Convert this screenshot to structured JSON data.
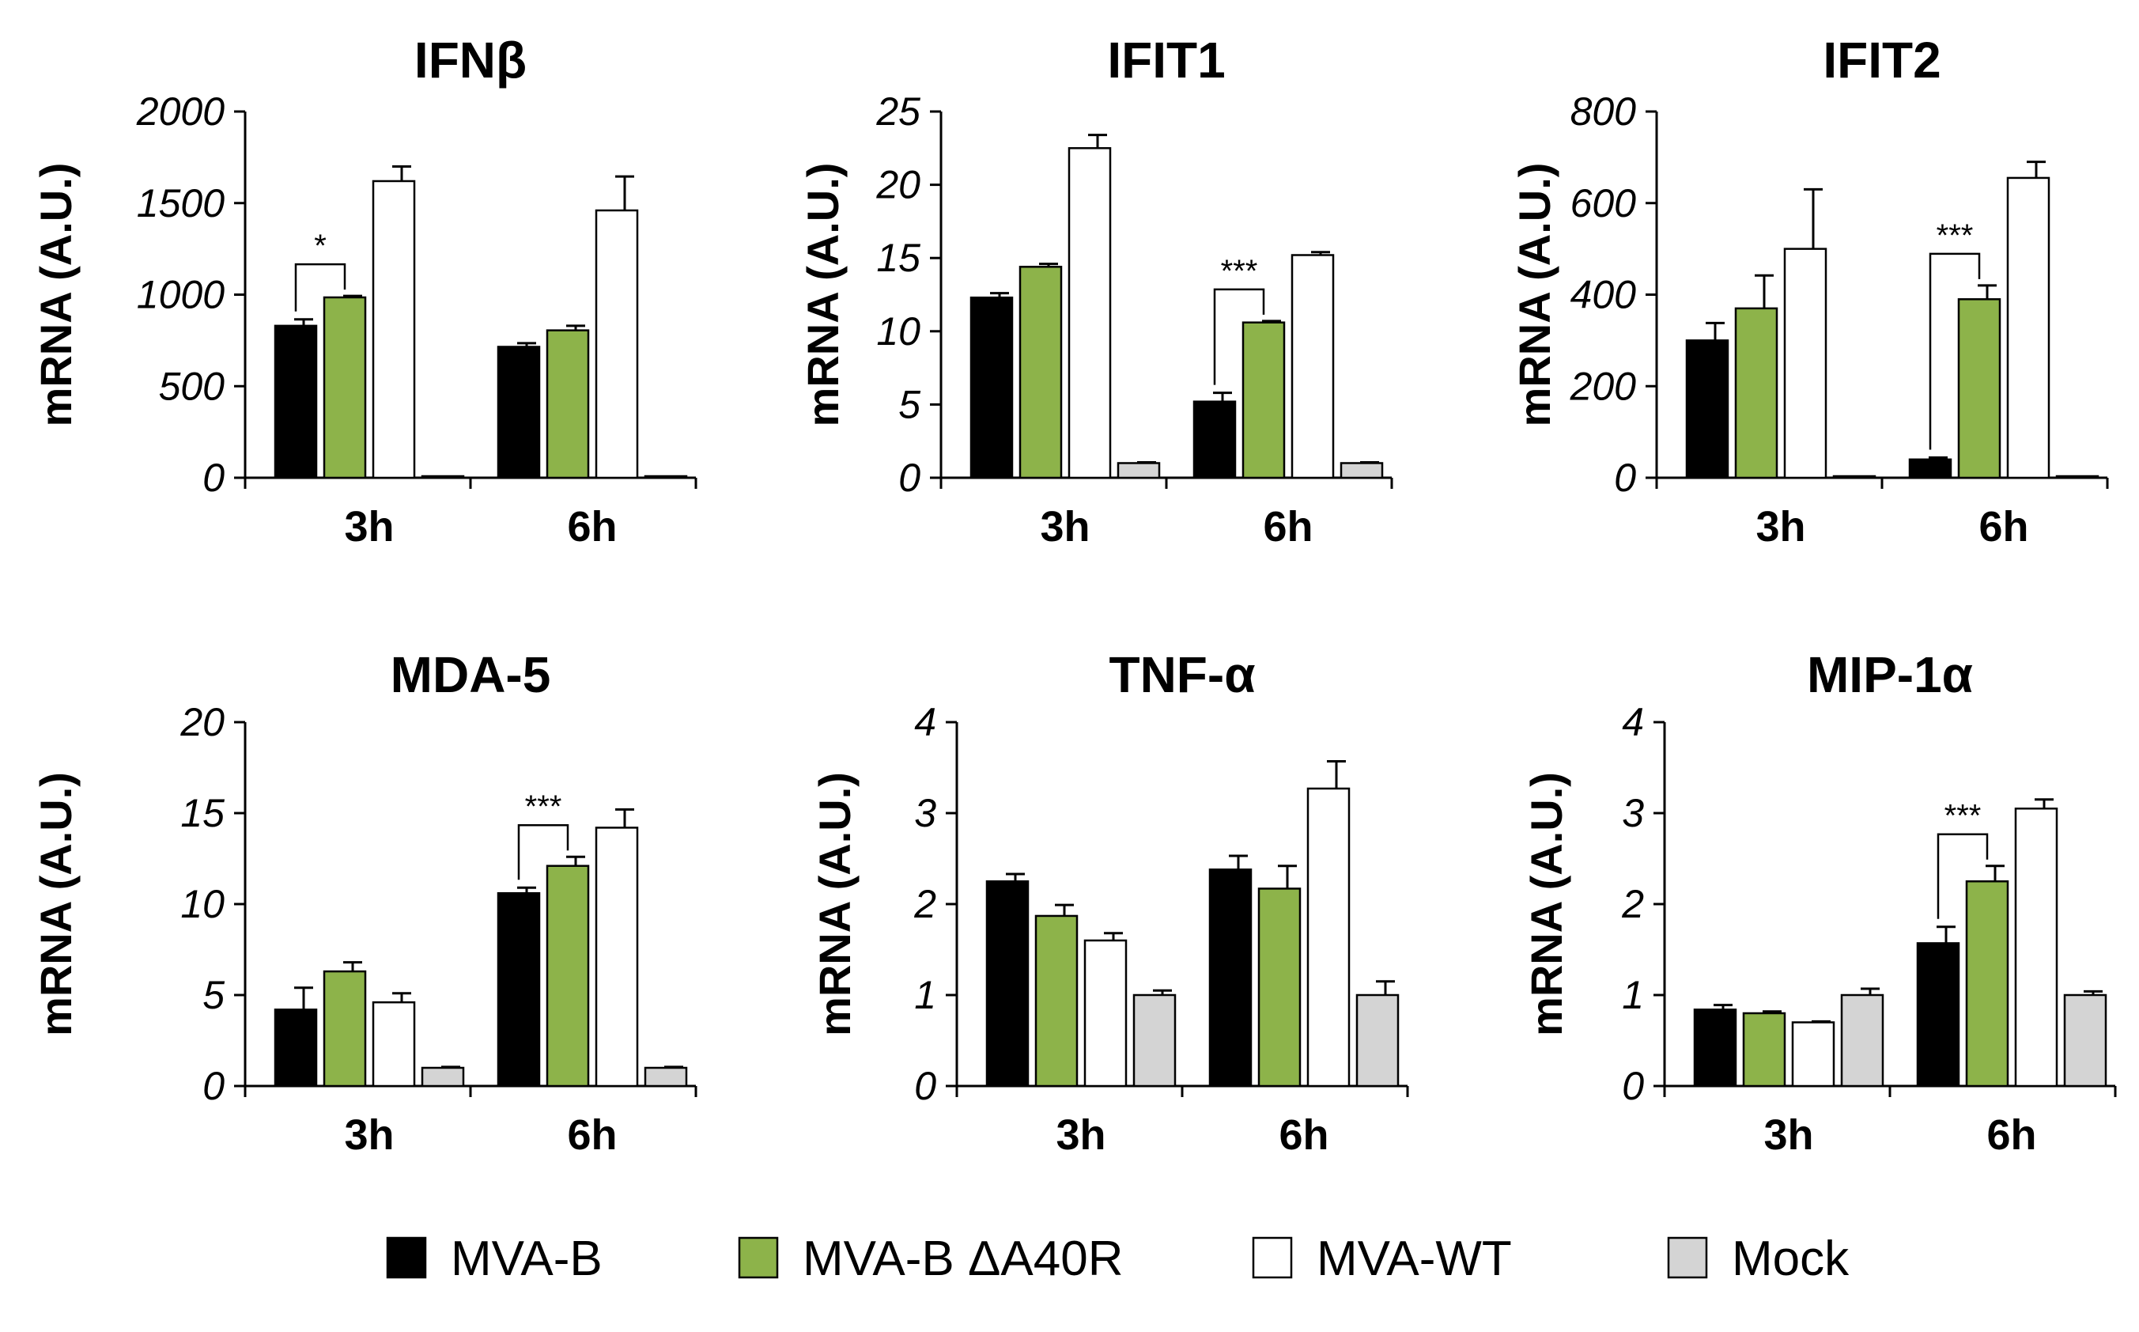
{
  "chart_data": [
    {
      "type": "bar",
      "title": "IFNβ",
      "ylabel": "mRNA (A.U.)",
      "xlabel": "",
      "categories": [
        "3h",
        "6h"
      ],
      "ylim": [
        0,
        2000
      ],
      "yticks": [
        0,
        500,
        1000,
        1500,
        2000
      ],
      "series": [
        {
          "name": "MVA-B",
          "values": [
            830,
            715
          ],
          "errors": [
            35,
            20
          ]
        },
        {
          "name": "MVA-B ΔA40R",
          "values": [
            985,
            805
          ],
          "errors": [
            8,
            25
          ]
        },
        {
          "name": "MVA-WT",
          "values": [
            1620,
            1460
          ],
          "errors": [
            80,
            185
          ]
        },
        {
          "name": "Mock",
          "values": [
            5,
            5
          ],
          "errors": [
            0,
            0
          ]
        }
      ],
      "significance": [
        {
          "category": "3h",
          "label": "*"
        }
      ]
    },
    {
      "type": "bar",
      "title": "IFIT1",
      "ylabel": "mRNA (A.U.)",
      "xlabel": "",
      "categories": [
        "3h",
        "6h"
      ],
      "ylim": [
        0,
        25
      ],
      "yticks": [
        0,
        5,
        10,
        15,
        20,
        25
      ],
      "series": [
        {
          "name": "MVA-B",
          "values": [
            12.3,
            5.2
          ],
          "errors": [
            0.3,
            0.6
          ]
        },
        {
          "name": "MVA-B ΔA40R",
          "values": [
            14.4,
            10.6
          ],
          "errors": [
            0.2,
            0.1
          ]
        },
        {
          "name": "MVA-WT",
          "values": [
            22.5,
            15.2
          ],
          "errors": [
            0.9,
            0.2
          ]
        },
        {
          "name": "Mock",
          "values": [
            1.0,
            1.0
          ],
          "errors": [
            0.05,
            0.05
          ]
        }
      ],
      "significance": [
        {
          "category": "6h",
          "label": "***"
        }
      ]
    },
    {
      "type": "bar",
      "title": "IFIT2",
      "ylabel": "mRNA (A.U.)",
      "xlabel": "",
      "categories": [
        "3h",
        "6h"
      ],
      "ylim": [
        0,
        800
      ],
      "yticks": [
        0,
        200,
        400,
        600,
        800
      ],
      "series": [
        {
          "name": "MVA-B",
          "values": [
            300,
            40
          ],
          "errors": [
            38,
            4
          ]
        },
        {
          "name": "MVA-B ΔA40R",
          "values": [
            370,
            390
          ],
          "errors": [
            72,
            30
          ]
        },
        {
          "name": "MVA-WT",
          "values": [
            500,
            655
          ],
          "errors": [
            130,
            35
          ]
        },
        {
          "name": "Mock",
          "values": [
            2,
            2
          ],
          "errors": [
            0,
            0
          ]
        }
      ],
      "significance": [
        {
          "category": "6h",
          "label": "***"
        }
      ]
    },
    {
      "type": "bar",
      "title": "MDA-5",
      "ylabel": "mRNA (A.U.)",
      "xlabel": "",
      "categories": [
        "3h",
        "6h"
      ],
      "ylim": [
        0,
        20
      ],
      "yticks": [
        0,
        5,
        10,
        15,
        20
      ],
      "series": [
        {
          "name": "MVA-B",
          "values": [
            4.2,
            10.6
          ],
          "errors": [
            1.2,
            0.3
          ]
        },
        {
          "name": "MVA-B ΔA40R",
          "values": [
            6.3,
            12.1
          ],
          "errors": [
            0.5,
            0.5
          ]
        },
        {
          "name": "MVA-WT",
          "values": [
            4.6,
            14.2
          ],
          "errors": [
            0.5,
            1.0
          ]
        },
        {
          "name": "Mock",
          "values": [
            1.0,
            1.0
          ],
          "errors": [
            0.05,
            0.05
          ]
        }
      ],
      "significance": [
        {
          "category": "6h",
          "label": "***"
        }
      ]
    },
    {
      "type": "bar",
      "title": "TNF-α",
      "ylabel": "mRNA (A.U.)",
      "xlabel": "",
      "categories": [
        "3h",
        "6h"
      ],
      "ylim": [
        0,
        4
      ],
      "yticks": [
        0,
        1,
        2,
        3,
        4
      ],
      "series": [
        {
          "name": "MVA-B",
          "values": [
            2.25,
            2.38
          ],
          "errors": [
            0.08,
            0.15
          ]
        },
        {
          "name": "MVA-B ΔA40R",
          "values": [
            1.87,
            2.17
          ],
          "errors": [
            0.12,
            0.25
          ]
        },
        {
          "name": "MVA-WT",
          "values": [
            1.6,
            3.27
          ],
          "errors": [
            0.08,
            0.3
          ]
        },
        {
          "name": "Mock",
          "values": [
            1.0,
            1.0
          ],
          "errors": [
            0.05,
            0.15
          ]
        }
      ],
      "significance": []
    },
    {
      "type": "bar",
      "title": "MIP-1α",
      "ylabel": "mRNA (A.U.)",
      "xlabel": "",
      "categories": [
        "3h",
        "6h"
      ],
      "ylim": [
        0,
        4
      ],
      "yticks": [
        0,
        1,
        2,
        3,
        4
      ],
      "series": [
        {
          "name": "MVA-B",
          "values": [
            0.84,
            1.57
          ],
          "errors": [
            0.05,
            0.18
          ]
        },
        {
          "name": "MVA-B ΔA40R",
          "values": [
            0.8,
            2.25
          ],
          "errors": [
            0.02,
            0.17
          ]
        },
        {
          "name": "MVA-WT",
          "values": [
            0.7,
            3.05
          ],
          "errors": [
            0.01,
            0.1
          ]
        },
        {
          "name": "Mock",
          "values": [
            1.0,
            1.0
          ],
          "errors": [
            0.07,
            0.04
          ]
        }
      ],
      "significance": [
        {
          "category": "6h",
          "label": "***"
        }
      ]
    }
  ],
  "legend": {
    "position": "bottom-center",
    "items": [
      {
        "label": "MVA-B",
        "color": "#000000"
      },
      {
        "label": "MVA-B ΔA40R",
        "color": "#8db34a"
      },
      {
        "label": "MVA-WT",
        "color": "#ffffff"
      },
      {
        "label": "Mock",
        "color": "#d4d4d4"
      }
    ]
  }
}
